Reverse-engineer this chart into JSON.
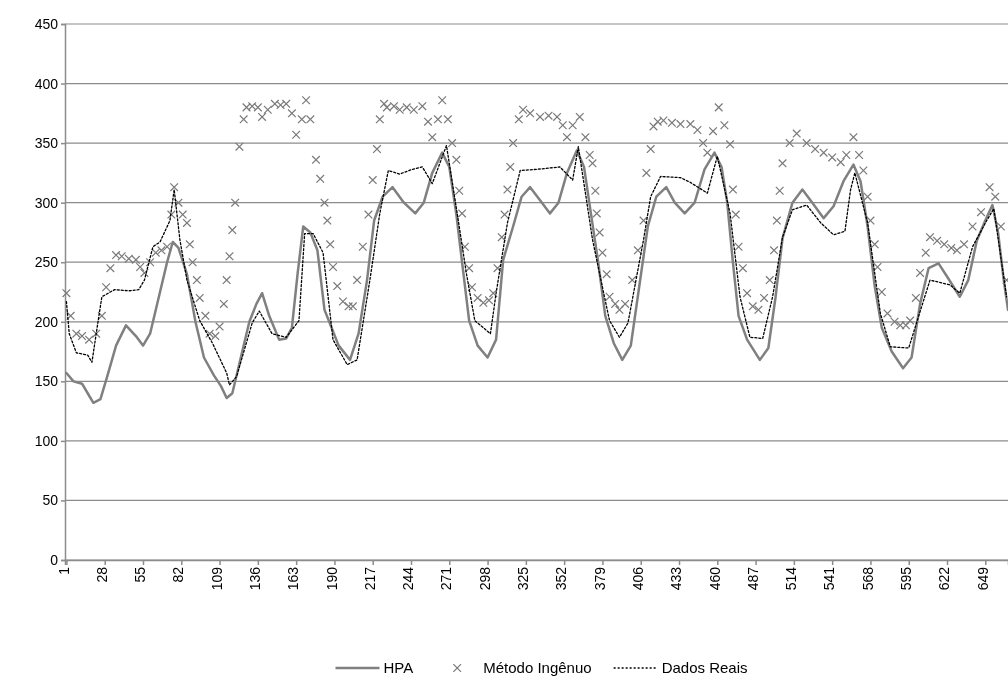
{
  "chart_data": {
    "type": "line",
    "xlim": [
      0,
      665
    ],
    "xticks": [
      1,
      28,
      55,
      82,
      109,
      136,
      163,
      190,
      217,
      244,
      271,
      298,
      325,
      352,
      379,
      406,
      433,
      460,
      487,
      514,
      541,
      568,
      595,
      622,
      649
    ],
    "ylim": [
      0,
      450
    ],
    "yticks": [
      0,
      50,
      100,
      150,
      200,
      250,
      300,
      350,
      400,
      450
    ],
    "grid": "y",
    "legend": "bottom",
    "series": [
      {
        "name": "HPA",
        "color": "#808080",
        "line_style": "solid",
        "marker": "none",
        "x": [
          1,
          6,
          12,
          16,
          20,
          25,
          30,
          36,
          43,
          50,
          55,
          60,
          66,
          72,
          76,
          80,
          86,
          92,
          98,
          105,
          110,
          114,
          118,
          124,
          130,
          135,
          139,
          144,
          151,
          156,
          160,
          164,
          168,
          173,
          178,
          183,
          188,
          193,
          201,
          207,
          213,
          218,
          224,
          231,
          239,
          247,
          253,
          259,
          266,
          271,
          276,
          280,
          285,
          291,
          298,
          304,
          309,
          316,
          322,
          328,
          335,
          342,
          348,
          354,
          361,
          366,
          371,
          376,
          381,
          387,
          393,
          399,
          405,
          411,
          417,
          424,
          430,
          437,
          444,
          451,
          458,
          463,
          467,
          471,
          475,
          481,
          490,
          496,
          501,
          506,
          513,
          520,
          527,
          535,
          542,
          549,
          556,
          561,
          566,
          571,
          576,
          583,
          591,
          597,
          603,
          609,
          616,
          622,
          631,
          637,
          643,
          649,
          654,
          658,
          662,
          665
        ],
        "values": [
          157,
          150,
          148,
          140,
          132,
          135,
          155,
          180,
          197,
          188,
          180,
          190,
          220,
          250,
          267,
          262,
          240,
          200,
          170,
          155,
          146,
          136,
          140,
          170,
          200,
          215,
          224,
          205,
          185,
          186,
          195,
          240,
          280,
          275,
          260,
          210,
          195,
          180,
          168,
          190,
          235,
          285,
          305,
          313,
          300,
          291,
          300,
          325,
          342,
          330,
          290,
          250,
          201,
          180,
          170,
          185,
          252,
          280,
          305,
          313,
          302,
          291,
          300,
          325,
          344,
          330,
          290,
          250,
          205,
          182,
          168,
          180,
          230,
          280,
          305,
          313,
          300,
          291,
          300,
          328,
          342,
          330,
          300,
          250,
          205,
          185,
          168,
          178,
          220,
          270,
          300,
          311,
          300,
          287,
          297,
          318,
          332,
          318,
          280,
          230,
          195,
          175,
          161,
          170,
          215,
          245,
          249,
          238,
          221,
          235,
          268,
          285,
          298,
          275,
          235,
          210
        ]
      },
      {
        "name": "Método Ingênuo",
        "type": "scatter",
        "color": "#7a7a7a",
        "marker": "cross",
        "x": [
          1,
          4,
          8,
          12,
          17,
          22,
          26,
          29,
          32,
          36,
          40,
          45,
          50,
          53,
          56,
          60,
          64,
          68,
          72,
          75,
          77,
          80,
          83,
          86,
          88,
          90,
          93,
          95,
          99,
          102,
          106,
          109,
          112,
          114,
          116,
          118,
          120,
          123,
          126,
          128,
          132,
          136,
          139,
          143,
          148,
          152,
          156,
          160,
          163,
          167,
          170,
          173,
          177,
          180,
          183,
          185,
          187,
          189,
          192,
          196,
          200,
          203,
          206,
          210,
          214,
          217,
          220,
          222,
          225,
          227,
          232,
          236,
          241,
          246,
          252,
          256,
          259,
          263,
          266,
          270,
          273,
          276,
          278,
          280,
          282,
          285,
          287,
          291,
          295,
          299,
          302,
          305,
          308,
          310,
          312,
          314,
          316,
          320,
          323,
          328,
          335,
          341,
          347,
          351,
          354,
          358,
          363,
          367,
          370,
          372,
          374,
          375,
          377,
          379,
          382,
          384,
          388,
          391,
          395,
          400,
          404,
          408,
          410,
          413,
          415,
          418,
          422,
          428,
          434,
          441,
          446,
          450,
          453,
          457,
          461,
          465,
          469,
          471,
          473,
          475,
          478,
          481,
          485,
          489,
          493,
          497,
          500,
          502,
          504,
          506,
          511,
          516,
          523,
          529,
          535,
          541,
          547,
          551,
          556,
          560,
          563,
          566,
          568,
          571,
          573,
          576,
          580,
          585,
          589,
          593,
          596,
          600,
          603,
          607,
          610,
          615,
          620,
          625,
          629,
          634,
          640,
          646,
          652,
          656,
          660,
          664
        ],
        "values": [
          224,
          205,
          190,
          188,
          185,
          190,
          205,
          229,
          245,
          256,
          255,
          253,
          252,
          246,
          241,
          250,
          258,
          260,
          263,
          290,
          313,
          300,
          290,
          283,
          265,
          250,
          235,
          220,
          205,
          190,
          188,
          196,
          215,
          235,
          255,
          277,
          300,
          347,
          370,
          380,
          381,
          380,
          372,
          378,
          383,
          382,
          383,
          375,
          357,
          370,
          386,
          370,
          336,
          320,
          300,
          285,
          265,
          246,
          230,
          217,
          213,
          213,
          235,
          263,
          290,
          319,
          345,
          370,
          383,
          380,
          381,
          378,
          380,
          378,
          381,
          368,
          355,
          370,
          386,
          370,
          350,
          336,
          310,
          291,
          263,
          245,
          229,
          220,
          216,
          218,
          224,
          245,
          271,
          290,
          311,
          330,
          350,
          370,
          378,
          375,
          372,
          373,
          372,
          365,
          355,
          365,
          372,
          355,
          340,
          333,
          310,
          291,
          275,
          258,
          240,
          221,
          215,
          210,
          215,
          235,
          260,
          285,
          325,
          345,
          364,
          368,
          369,
          367,
          366,
          366,
          361,
          350,
          342,
          360,
          380,
          365,
          349,
          311,
          290,
          263,
          245,
          224,
          213,
          210,
          220,
          235,
          260,
          285,
          310,
          333,
          350,
          358,
          350,
          345,
          342,
          338,
          334,
          340,
          355,
          340,
          327,
          305,
          285,
          265,
          246,
          225,
          207,
          200,
          197,
          197,
          201,
          220,
          241,
          258,
          271,
          268,
          265,
          262,
          260,
          265,
          280,
          292,
          313,
          305,
          280,
          235
        ]
      },
      {
        "name": "Dados Reais",
        "color": "#000000",
        "line_style": "dotted",
        "marker": "none",
        "x": [
          1,
          3,
          8,
          16,
          19,
          22,
          26,
          35,
          45,
          52,
          56,
          62,
          67,
          74,
          77,
          81,
          86,
          95,
          104,
          114,
          116,
          121,
          132,
          137,
          146,
          156,
          165,
          169,
          175,
          182,
          189,
          199,
          206,
          215,
          222,
          228,
          236,
          245,
          252,
          259,
          264,
          269,
          278,
          283,
          289,
          300,
          304,
          312,
          321,
          333,
          349,
          358,
          362,
          372,
          379,
          384,
          391,
          397,
          408,
          413,
          420,
          434,
          441,
          453,
          460,
          469,
          476,
          483,
          492,
          499,
          506,
          513,
          523,
          533,
          542,
          550,
          554,
          557,
          566,
          575,
          582,
          595,
          601,
          610,
          624,
          631,
          640,
          650,
          655,
          664
        ],
        "values": [
          217,
          190,
          174,
          172,
          166,
          190,
          221,
          227,
          226,
          227,
          235,
          263,
          267,
          285,
          311,
          269,
          235,
          201,
          182,
          157,
          147,
          154,
          199,
          209,
          190,
          187,
          201,
          274,
          274,
          258,
          185,
          164,
          168,
          235,
          291,
          327,
          324,
          328,
          330,
          316,
          332,
          348,
          280,
          241,
          201,
          190,
          224,
          283,
          327,
          328,
          330,
          319,
          347,
          269,
          229,
          201,
          187,
          199,
          269,
          305,
          322,
          321,
          317,
          308,
          339,
          291,
          221,
          187,
          186,
          221,
          271,
          294,
          298,
          283,
          273,
          276,
          311,
          325,
          283,
          207,
          179,
          178,
          201,
          235,
          231,
          224,
          263,
          285,
          295,
          221
        ]
      }
    ]
  }
}
